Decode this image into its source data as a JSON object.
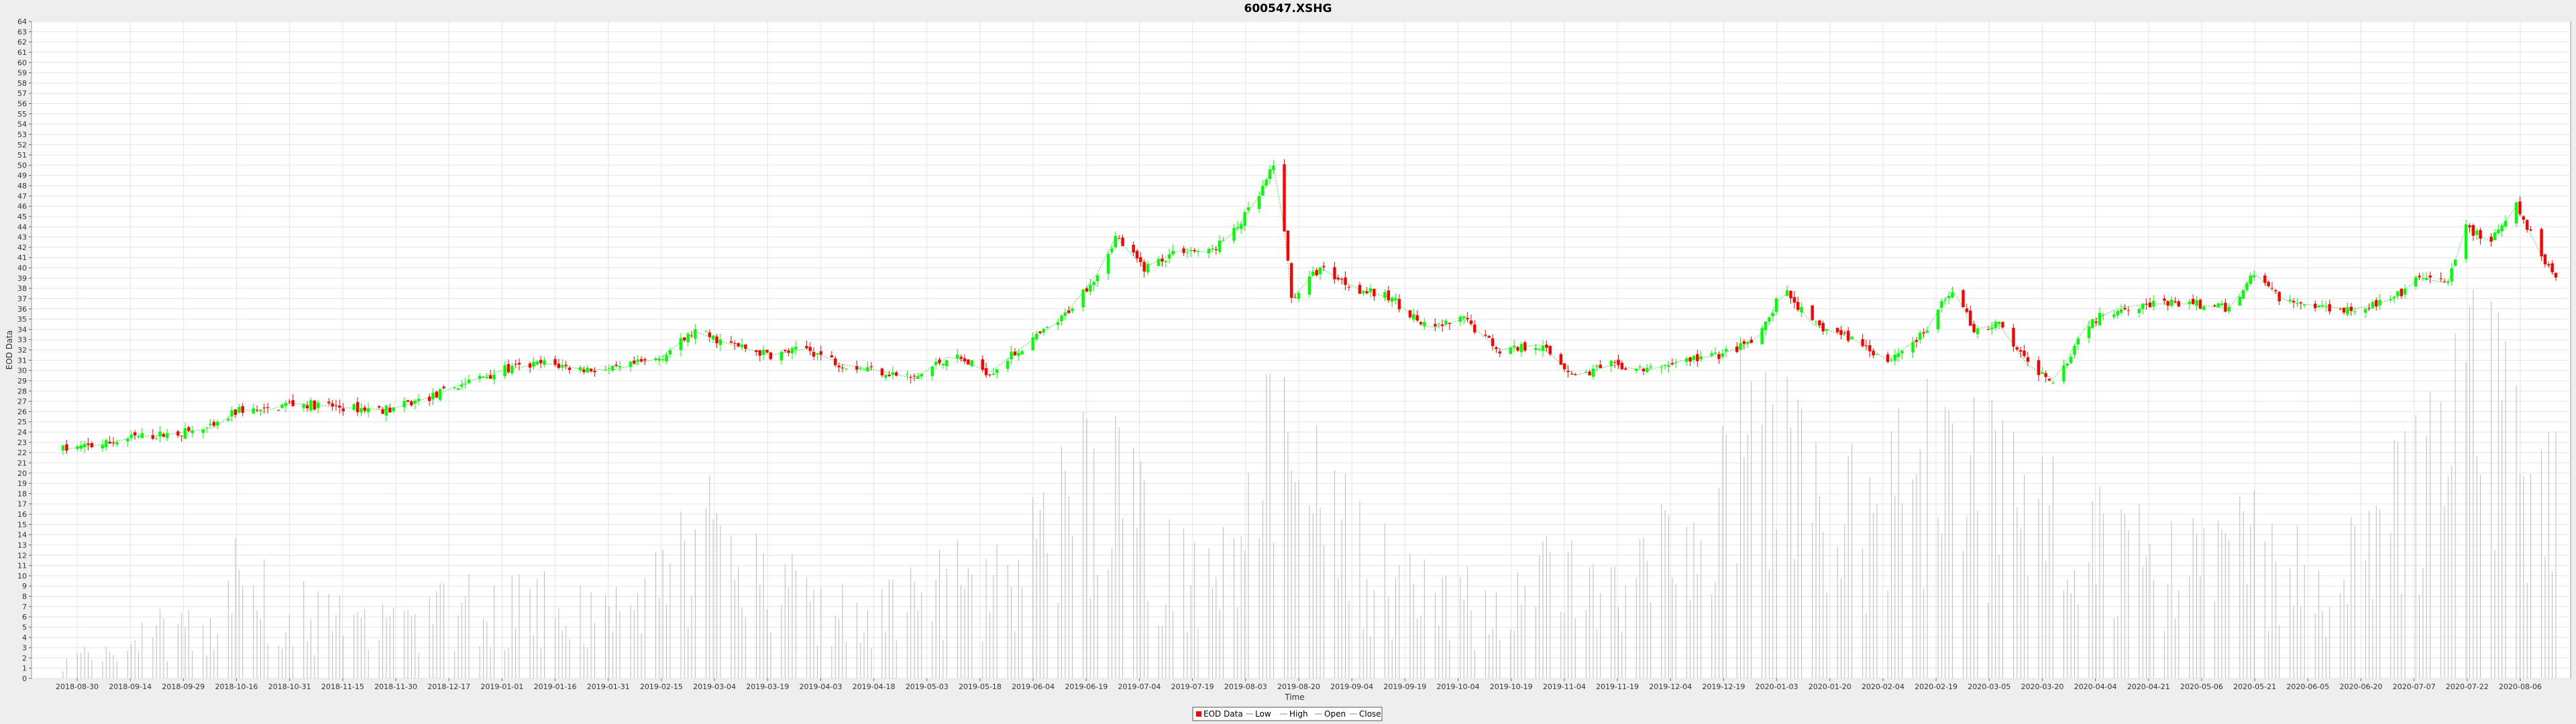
{
  "chart_data": {
    "type": "candlestick",
    "title": "600547.XSHG",
    "xlabel": "Time",
    "ylabel": "EOD Data",
    "ylim": [
      0,
      64
    ],
    "xlim": [
      "2018-09-20",
      "2020-08-14"
    ],
    "grid": true,
    "legend_placement": "bottom-center",
    "legend": [
      "EOD Data",
      "Low",
      "High",
      "Open",
      "Close"
    ],
    "x_tick_labels": [
      "2018-08-30",
      "2018-09-14",
      "2018-09-29",
      "2018-10-16",
      "2018-10-31",
      "2018-11-15",
      "2018-11-30",
      "2018-12-17",
      "2019-01-01",
      "2019-01-16",
      "2019-01-31",
      "2019-02-15",
      "2019-03-04",
      "2019-03-19",
      "2019-04-03",
      "2019-04-18",
      "2019-05-03",
      "2019-05-18",
      "2019-06-04",
      "2019-06-19",
      "2019-07-04",
      "2019-07-19",
      "2019-08-03",
      "2019-08-20",
      "2019-09-04",
      "2019-09-19",
      "2019-10-04",
      "2019-10-19",
      "2019-11-04",
      "2019-11-19",
      "2019-12-04",
      "2019-12-19",
      "2020-01-03",
      "2020-01-20",
      "2020-02-04",
      "2020-02-19",
      "2020-03-05",
      "2020-03-20",
      "2020-04-04",
      "2020-04-21",
      "2020-05-06",
      "2020-05-21",
      "2020-06-05",
      "2020-06-20",
      "2020-07-07",
      "2020-07-22",
      "2020-08-06"
    ],
    "trend_close": [
      [
        "2018-09-20",
        22.3
      ],
      [
        "2018-10-01",
        22.8
      ],
      [
        "2018-10-10",
        23.5
      ],
      [
        "2018-10-20",
        23.8
      ],
      [
        "2018-11-01",
        24.4
      ],
      [
        "2018-11-08",
        26.2
      ],
      [
        "2018-11-15",
        26.0
      ],
      [
        "2018-11-22",
        26.8
      ],
      [
        "2018-12-01",
        26.6
      ],
      [
        "2018-12-10",
        26.3
      ],
      [
        "2018-12-20",
        26.2
      ],
      [
        "2019-01-01",
        27.5
      ],
      [
        "2019-01-10",
        28.8
      ],
      [
        "2019-01-20",
        30.0
      ],
      [
        "2019-02-01",
        30.7
      ],
      [
        "2019-02-10",
        30.2
      ],
      [
        "2019-02-20",
        30.0
      ],
      [
        "2019-03-05",
        31.2
      ],
      [
        "2019-03-15",
        33.8
      ],
      [
        "2019-03-25",
        32.5
      ],
      [
        "2019-04-05",
        31.5
      ],
      [
        "2019-04-15",
        32.1
      ],
      [
        "2019-04-25",
        30.6
      ],
      [
        "2019-05-05",
        30.0
      ],
      [
        "2019-05-15",
        29.2
      ],
      [
        "2019-05-25",
        31.5
      ],
      [
        "2019-06-05",
        29.8
      ],
      [
        "2019-06-15",
        32.5
      ],
      [
        "2019-06-25",
        35.0
      ],
      [
        "2019-07-05",
        39.5
      ],
      [
        "2019-07-10",
        43.0
      ],
      [
        "2019-07-18",
        40.0
      ],
      [
        "2019-07-28",
        41.8
      ],
      [
        "2019-08-05",
        41.5
      ],
      [
        "2019-08-12",
        43.5
      ],
      [
        "2019-08-19",
        47.0
      ],
      [
        "2019-08-24",
        50.6
      ],
      [
        "2019-08-28",
        37.0
      ],
      [
        "2019-09-05",
        40.0
      ],
      [
        "2019-09-15",
        38.0
      ],
      [
        "2019-09-25",
        37.0
      ],
      [
        "2019-10-05",
        34.0
      ],
      [
        "2019-10-15",
        35.0
      ],
      [
        "2019-10-25",
        32.0
      ],
      [
        "2019-11-05",
        32.5
      ],
      [
        "2019-11-15",
        29.5
      ],
      [
        "2019-11-25",
        30.5
      ],
      [
        "2019-12-05",
        30.0
      ],
      [
        "2019-12-15",
        31.0
      ],
      [
        "2019-12-25",
        31.5
      ],
      [
        "2020-01-05",
        33.0
      ],
      [
        "2020-01-12",
        38.0
      ],
      [
        "2020-01-20",
        34.5
      ],
      [
        "2020-02-01",
        33.0
      ],
      [
        "2020-02-10",
        31.0
      ],
      [
        "2020-02-20",
        33.5
      ],
      [
        "2020-02-28",
        38.0
      ],
      [
        "2020-03-05",
        34.0
      ],
      [
        "2020-03-12",
        34.5
      ],
      [
        "2020-03-20",
        30.5
      ],
      [
        "2020-03-28",
        29.0
      ],
      [
        "2020-04-05",
        34.5
      ],
      [
        "2020-04-15",
        36.2
      ],
      [
        "2020-04-25",
        36.5
      ],
      [
        "2020-05-05",
        36.5
      ],
      [
        "2020-05-15",
        36.0
      ],
      [
        "2020-05-22",
        39.5
      ],
      [
        "2020-05-30",
        36.8
      ],
      [
        "2020-06-10",
        36.2
      ],
      [
        "2020-06-20",
        36.0
      ],
      [
        "2020-06-30",
        37.0
      ],
      [
        "2020-07-07",
        39.0
      ],
      [
        "2020-07-15",
        38.5
      ],
      [
        "2020-07-20",
        44.0
      ],
      [
        "2020-07-27",
        42.5
      ],
      [
        "2020-08-03",
        46.0
      ],
      [
        "2020-08-08",
        42.5
      ],
      [
        "2020-08-14",
        39.0
      ]
    ],
    "volume_profile": [
      [
        "2018-09-20",
        2.0
      ],
      [
        "2018-10-01",
        2.5
      ],
      [
        "2018-10-15",
        5.0
      ],
      [
        "2018-11-01",
        4.5
      ],
      [
        "2018-11-08",
        11.0
      ],
      [
        "2018-11-20",
        8.0
      ],
      [
        "2018-12-01",
        6.0
      ],
      [
        "2018-12-15",
        5.0
      ],
      [
        "2019-01-01",
        6.5
      ],
      [
        "2019-01-15",
        7.5
      ],
      [
        "2019-02-01",
        8.0
      ],
      [
        "2019-02-15",
        6.5
      ],
      [
        "2019-03-01",
        7.5
      ],
      [
        "2019-03-15",
        14.0
      ],
      [
        "2019-03-25",
        13.5
      ],
      [
        "2019-04-05",
        10.0
      ],
      [
        "2019-04-20",
        8.0
      ],
      [
        "2019-05-05",
        6.0
      ],
      [
        "2019-05-20",
        10.0
      ],
      [
        "2019-06-05",
        9.0
      ],
      [
        "2019-06-20",
        14.0
      ],
      [
        "2019-07-05",
        22.0
      ],
      [
        "2019-07-15",
        16.0
      ],
      [
        "2019-07-28",
        11.0
      ],
      [
        "2019-08-10",
        15.0
      ],
      [
        "2019-08-22",
        24.0
      ],
      [
        "2019-09-05",
        17.0
      ],
      [
        "2019-09-20",
        11.0
      ],
      [
        "2019-10-05",
        8.0
      ],
      [
        "2019-10-20",
        7.5
      ],
      [
        "2019-11-05",
        10.0
      ],
      [
        "2019-11-20",
        9.0
      ],
      [
        "2019-12-05",
        11.0
      ],
      [
        "2019-12-20",
        15.0
      ],
      [
        "2020-01-08",
        30.0
      ],
      [
        "2020-01-20",
        18.0
      ],
      [
        "2020-02-05",
        18.0
      ],
      [
        "2020-02-20",
        24.0
      ],
      [
        "2020-03-05",
        20.0
      ],
      [
        "2020-03-20",
        22.0
      ],
      [
        "2020-04-05",
        14.0
      ],
      [
        "2020-04-20",
        12.0
      ],
      [
        "2020-05-05",
        11.0
      ],
      [
        "2020-05-20",
        14.0
      ],
      [
        "2020-06-05",
        10.0
      ],
      [
        "2020-06-20",
        11.0
      ],
      [
        "2020-07-07",
        20.0
      ],
      [
        "2020-07-20",
        28.0
      ],
      [
        "2020-08-05",
        27.0
      ],
      [
        "2020-08-14",
        22.0
      ]
    ]
  },
  "colors": {
    "up": "#00ff00",
    "down": "#ff0000",
    "volume": "#bbbbbb",
    "grid": "#e4e4e4",
    "trend": "#44dd44"
  }
}
